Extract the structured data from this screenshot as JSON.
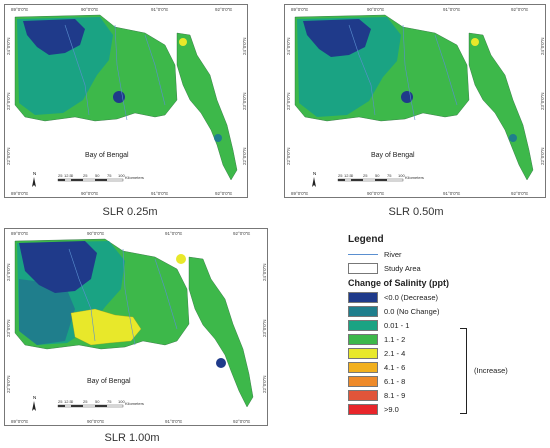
{
  "panels": [
    {
      "caption": "SLR 0.25m",
      "bay_label": "Bay of Bengal",
      "lon_ticks": [
        "89°0'0\"E",
        "90°0'0\"E",
        "91°0'0\"E",
        "92°0'0\"E"
      ],
      "lat_ticks": [
        "24°0'0\"N",
        "23°0'0\"N",
        "22°0'0\"N",
        "21°0'0\"N"
      ],
      "scale_numbers": [
        "25",
        "12.5",
        "0",
        "25",
        "50",
        "75",
        "100"
      ],
      "scale_unit": "Kilometers",
      "north": "N"
    },
    {
      "caption": "SLR 0.50m",
      "bay_label": "Bay of Bengal",
      "lon_ticks": [
        "89°0'0\"E",
        "90°0'0\"E",
        "91°0'0\"E",
        "92°0'0\"E"
      ],
      "lat_ticks": [
        "24°0'0\"N",
        "23°0'0\"N",
        "22°0'0\"N",
        "21°0'0\"N"
      ],
      "scale_numbers": [
        "25",
        "12.5",
        "0",
        "25",
        "50",
        "75",
        "100"
      ],
      "scale_unit": "Kilometers",
      "north": "N"
    },
    {
      "caption": "SLR 1.00m",
      "bay_label": "Bay of Bengal",
      "lon_ticks": [
        "89°0'0\"E",
        "90°0'0\"E",
        "91°0'0\"E",
        "92°0'0\"E"
      ],
      "lat_ticks": [
        "24°0'0\"N",
        "23°0'0\"N",
        "22°0'0\"N",
        "21°0'0\"N"
      ],
      "scale_numbers": [
        "25",
        "12.5",
        "0",
        "25",
        "50",
        "75",
        "100"
      ],
      "scale_unit": "Kilometers",
      "north": "N"
    }
  ],
  "legend": {
    "title": "Legend",
    "river_label": "River",
    "study_area_label": "Study Area",
    "salinity_title": "Change of Salinity (ppt)",
    "classes": [
      {
        "label": "<0.0 (Decrease)",
        "color": "#1f3a8a"
      },
      {
        "label": "0.0 (No Change)",
        "color": "#1f7e8c"
      },
      {
        "label": "0.01 - 1",
        "color": "#1aa383"
      },
      {
        "label": "1.1 - 2",
        "color": "#3db84a"
      },
      {
        "label": "2.1 - 4",
        "color": "#e8e82a"
      },
      {
        "label": "4.1 - 6",
        "color": "#f2b01e"
      },
      {
        "label": "6.1 - 8",
        "color": "#ee8a2a"
      },
      {
        "label": "8.1 - 9",
        "color": "#e0553a"
      },
      {
        "label": ">9.0",
        "color": "#e8252a"
      }
    ],
    "increase_label": "(Increase)"
  },
  "colors": {
    "land_green": "#3db84a",
    "teal": "#1aa383",
    "dark_blue": "#1f3a8a",
    "blue_teal": "#1f7e8c",
    "yellow": "#e8e82a",
    "river": "#5a8fd0"
  }
}
